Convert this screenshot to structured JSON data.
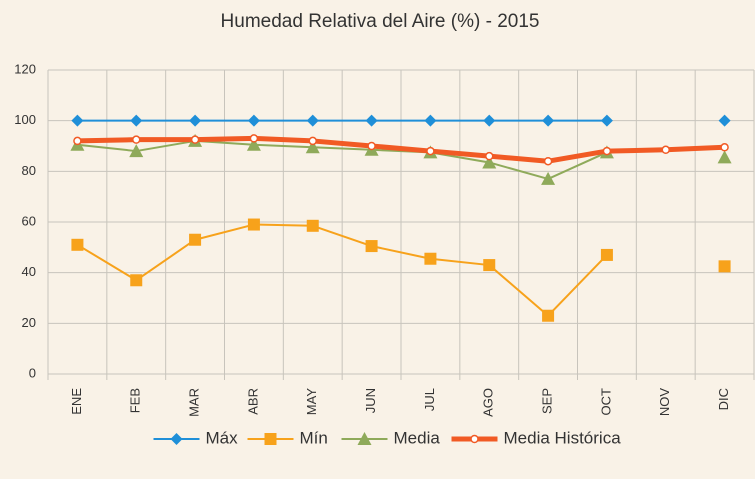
{
  "chart_data": {
    "type": "line",
    "title": "Humedad Relativa del Aire (%) - 2015",
    "categories": [
      "ENE",
      "FEB",
      "MAR",
      "ABR",
      "MAY",
      "JUN",
      "JUL",
      "AGO",
      "SEP",
      "OCT",
      "NOV",
      "DIC"
    ],
    "series": [
      {
        "name": "Máx",
        "color": "#1f8fd8",
        "marker": "diamond",
        "line_width": 2,
        "values": [
          100,
          100,
          100,
          100,
          100,
          100,
          100,
          100,
          100,
          100,
          null,
          100
        ]
      },
      {
        "name": "Mín",
        "color": "#f7a21b",
        "marker": "square",
        "line_width": 2,
        "values": [
          51,
          37,
          53,
          59,
          58.5,
          50.5,
          45.5,
          43,
          23,
          47,
          null,
          42.5
        ]
      },
      {
        "name": "Media",
        "color": "#8faa5a",
        "marker": "triangle",
        "line_width": 2,
        "values": [
          90.5,
          88,
          92,
          90.5,
          89.5,
          88.5,
          87.5,
          83.5,
          77,
          87.5,
          null,
          85.5
        ]
      },
      {
        "name": "Media Histórica",
        "color": "#f15a24",
        "marker": "circle",
        "line_width": 5,
        "values": [
          92,
          92.5,
          92.5,
          93,
          92,
          90,
          88,
          86,
          84,
          88,
          88.5,
          89.5
        ]
      }
    ],
    "ylim": [
      0,
      120
    ],
    "yticks": [
      0,
      20,
      40,
      60,
      80,
      100,
      120
    ],
    "grid": true,
    "legend": "bottom"
  }
}
